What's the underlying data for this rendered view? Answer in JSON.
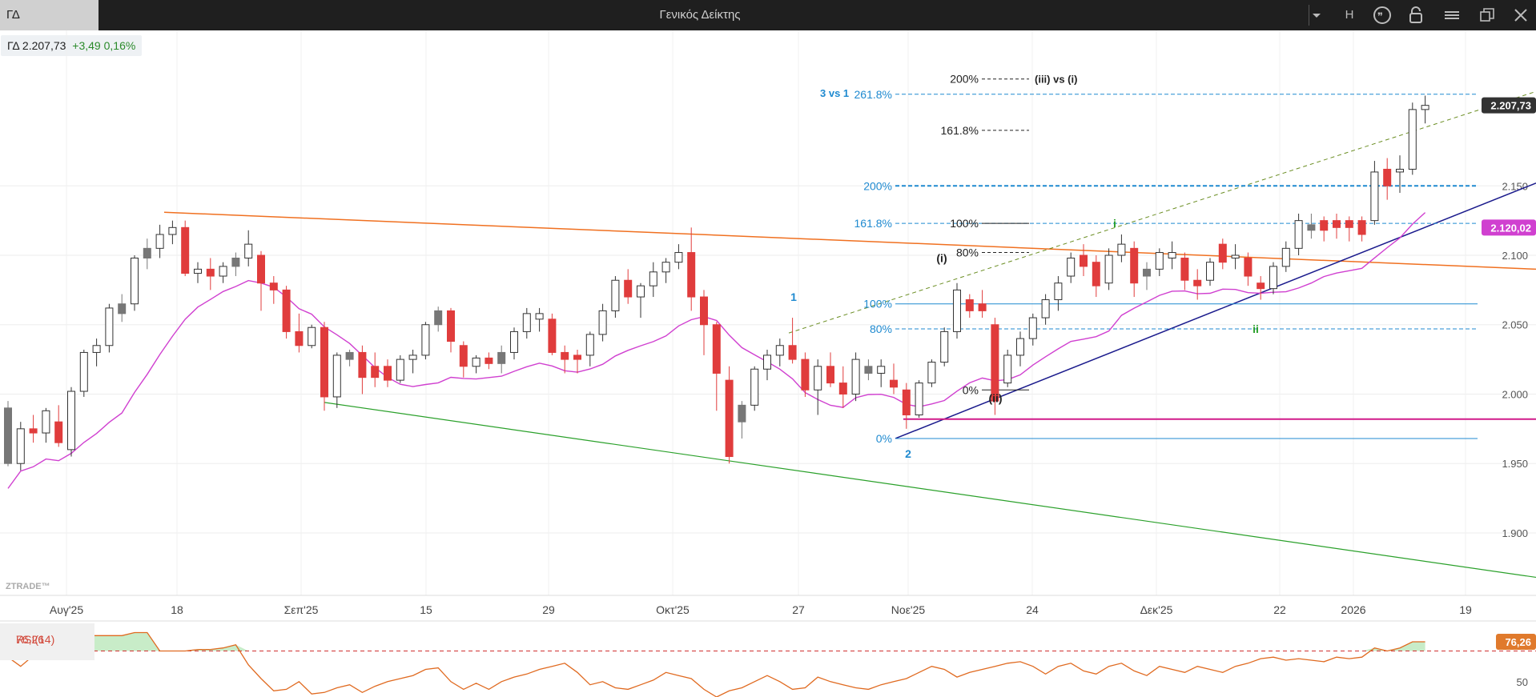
{
  "window": {
    "tab_label": "ΓΔ",
    "title": "Γενικός Δείκτης",
    "buttons": {
      "h_label": "H"
    }
  },
  "quote": {
    "symbol": "ΓΔ",
    "price": "2.207,73",
    "change": "+3,49 0,16%"
  },
  "colors": {
    "up_body": "#ffffff",
    "down_body": "#e03c3c",
    "neutral_body": "#777777",
    "ma": "#d040d0",
    "channel_top": "#f07020",
    "channel_bottom": "#2aa02a",
    "trend_navy": "#1a1a8c",
    "trend_olive": "#6b8e23",
    "support_magenta": "#d01a8a",
    "fib_blue": "#1f8ad0",
    "rsi_line": "#e06a20",
    "rsi_fill": "#c8ecc8"
  },
  "chart_data": {
    "type": "candlestick",
    "symbol": "ΓΔ",
    "watermark": "ZTRADE™",
    "ylim": [
      1855,
      2262
    ],
    "y_ticks": [
      "2.150",
      "2.100",
      "2.050",
      "2.000",
      "1.950",
      "1.900"
    ],
    "y_tick_values": [
      2150,
      2100,
      2050,
      2000,
      1950,
      1900
    ],
    "x_labels": [
      {
        "label": "Αυγ'25",
        "date": "2025-08-01"
      },
      {
        "label": "18",
        "date": "2025-08-18"
      },
      {
        "label": "Σεπ'25",
        "date": "2025-09-01"
      },
      {
        "label": "15",
        "date": "2025-09-15"
      },
      {
        "label": "29",
        "date": "2025-09-29"
      },
      {
        "label": "Οκτ'25",
        "date": "2025-10-13"
      },
      {
        "label": "27",
        "date": "2025-10-27"
      },
      {
        "label": "Νοε'25",
        "date": "2025-11-10"
      },
      {
        "label": "24",
        "date": "2025-11-24"
      },
      {
        "label": "Δεκ'25",
        "date": "2025-12-08"
      },
      {
        "label": "22",
        "date": "2025-12-22"
      },
      {
        "label": "2026",
        "date": "2026-01-05"
      },
      {
        "label": "19",
        "date": "2026-01-19"
      }
    ],
    "candles": [
      [
        1990,
        1995,
        1948,
        1950,
        "n"
      ],
      [
        1950,
        1980,
        1945,
        1975,
        "u"
      ],
      [
        1975,
        1985,
        1965,
        1972,
        "d"
      ],
      [
        1972,
        1990,
        1965,
        1988,
        "u"
      ],
      [
        1980,
        1992,
        1962,
        1965,
        "d"
      ],
      [
        1960,
        2005,
        1955,
        2002,
        "u"
      ],
      [
        2002,
        2032,
        1998,
        2030,
        "u"
      ],
      [
        2030,
        2040,
        2020,
        2035,
        "u"
      ],
      [
        2035,
        2065,
        2030,
        2062,
        "u"
      ],
      [
        2058,
        2072,
        2052,
        2065,
        "n"
      ],
      [
        2065,
        2100,
        2060,
        2098,
        "u"
      ],
      [
        2098,
        2112,
        2090,
        2105,
        "n"
      ],
      [
        2105,
        2122,
        2098,
        2115,
        "u"
      ],
      [
        2115,
        2125,
        2108,
        2120,
        "u"
      ],
      [
        2120,
        2125,
        2085,
        2087,
        "d"
      ],
      [
        2087,
        2095,
        2080,
        2090,
        "u"
      ],
      [
        2090,
        2098,
        2075,
        2085,
        "d"
      ],
      [
        2085,
        2095,
        2080,
        2092,
        "u"
      ],
      [
        2092,
        2102,
        2085,
        2098,
        "n"
      ],
      [
        2098,
        2118,
        2092,
        2108,
        "u"
      ],
      [
        2100,
        2103,
        2060,
        2080,
        "d"
      ],
      [
        2080,
        2085,
        2065,
        2075,
        "d"
      ],
      [
        2075,
        2078,
        2040,
        2045,
        "d"
      ],
      [
        2045,
        2058,
        2030,
        2035,
        "d"
      ],
      [
        2035,
        2050,
        2033,
        2048,
        "u"
      ],
      [
        2048,
        2052,
        1988,
        1998,
        "d"
      ],
      [
        1998,
        2030,
        1990,
        2028,
        "u"
      ],
      [
        2025,
        2032,
        2020,
        2030,
        "n"
      ],
      [
        2030,
        2035,
        2000,
        2012,
        "d"
      ],
      [
        2012,
        2030,
        2005,
        2020,
        "d"
      ],
      [
        2020,
        2025,
        2005,
        2010,
        "d"
      ],
      [
        2010,
        2028,
        2008,
        2025,
        "u"
      ],
      [
        2025,
        2032,
        2015,
        2028,
        "u"
      ],
      [
        2028,
        2052,
        2025,
        2050,
        "u"
      ],
      [
        2050,
        2063,
        2045,
        2060,
        "n"
      ],
      [
        2060,
        2062,
        2030,
        2038,
        "d"
      ],
      [
        2035,
        2038,
        2012,
        2020,
        "d"
      ],
      [
        2020,
        2028,
        2015,
        2026,
        "u"
      ],
      [
        2026,
        2030,
        2018,
        2022,
        "d"
      ],
      [
        2022,
        2035,
        2015,
        2030,
        "n"
      ],
      [
        2030,
        2048,
        2025,
        2045,
        "u"
      ],
      [
        2045,
        2062,
        2040,
        2058,
        "u"
      ],
      [
        2058,
        2062,
        2045,
        2054,
        "u"
      ],
      [
        2054,
        2058,
        2028,
        2030,
        "d"
      ],
      [
        2030,
        2035,
        2015,
        2025,
        "d"
      ],
      [
        2025,
        2032,
        2015,
        2028,
        "d"
      ],
      [
        2028,
        2045,
        2020,
        2043,
        "u"
      ],
      [
        2043,
        2065,
        2038,
        2060,
        "u"
      ],
      [
        2060,
        2085,
        2055,
        2082,
        "u"
      ],
      [
        2082,
        2090,
        2065,
        2070,
        "d"
      ],
      [
        2070,
        2080,
        2055,
        2078,
        "u"
      ],
      [
        2078,
        2095,
        2070,
        2088,
        "u"
      ],
      [
        2088,
        2098,
        2080,
        2095,
        "u"
      ],
      [
        2095,
        2108,
        2090,
        2102,
        "u"
      ],
      [
        2102,
        2120,
        2060,
        2070,
        "d"
      ],
      [
        2070,
        2075,
        2028,
        2050,
        "d"
      ],
      [
        2050,
        2052,
        1988,
        2015,
        "d"
      ],
      [
        2010,
        2020,
        1950,
        1955,
        "d"
      ],
      [
        1980,
        1995,
        1968,
        1992,
        "n"
      ],
      [
        1992,
        2020,
        1988,
        2018,
        "u"
      ],
      [
        2018,
        2032,
        2010,
        2028,
        "u"
      ],
      [
        2028,
        2040,
        2020,
        2035,
        "u"
      ],
      [
        2035,
        2055,
        2022,
        2025,
        "d"
      ],
      [
        2025,
        2030,
        1998,
        2003,
        "d"
      ],
      [
        2003,
        2025,
        1985,
        2020,
        "u"
      ],
      [
        2020,
        2030,
        2005,
        2008,
        "d"
      ],
      [
        2008,
        2020,
        1990,
        2000,
        "d"
      ],
      [
        2000,
        2030,
        1995,
        2025,
        "u"
      ],
      [
        2020,
        2025,
        2010,
        2015,
        "n"
      ],
      [
        2015,
        2025,
        2005,
        2020,
        "u"
      ],
      [
        2010,
        2022,
        2000,
        2005,
        "d"
      ],
      [
        2003,
        2008,
        1975,
        1985,
        "d"
      ],
      [
        1985,
        2010,
        1983,
        2008,
        "u"
      ],
      [
        2008,
        2025,
        2005,
        2023,
        "u"
      ],
      [
        2023,
        2048,
        2020,
        2045,
        "u"
      ],
      [
        2045,
        2080,
        2040,
        2075,
        "u"
      ],
      [
        2068,
        2072,
        2055,
        2060,
        "d"
      ],
      [
        2065,
        2075,
        2055,
        2060,
        "d"
      ],
      [
        2050,
        2055,
        1985,
        1995,
        "d"
      ],
      [
        2008,
        2032,
        2005,
        2028,
        "u"
      ],
      [
        2028,
        2045,
        2020,
        2040,
        "u"
      ],
      [
        2040,
        2058,
        2035,
        2055,
        "u"
      ],
      [
        2055,
        2072,
        2050,
        2068,
        "u"
      ],
      [
        2068,
        2085,
        2060,
        2080,
        "u"
      ],
      [
        2085,
        2102,
        2080,
        2098,
        "u"
      ],
      [
        2100,
        2108,
        2085,
        2092,
        "d"
      ],
      [
        2095,
        2100,
        2070,
        2078,
        "d"
      ],
      [
        2080,
        2105,
        2075,
        2100,
        "u"
      ],
      [
        2100,
        2115,
        2095,
        2108,
        "u"
      ],
      [
        2105,
        2110,
        2070,
        2080,
        "d"
      ],
      [
        2090,
        2095,
        2075,
        2085,
        "n"
      ],
      [
        2090,
        2105,
        2085,
        2102,
        "u"
      ],
      [
        2102,
        2110,
        2090,
        2098,
        "u"
      ],
      [
        2098,
        2102,
        2075,
        2082,
        "d"
      ],
      [
        2082,
        2090,
        2068,
        2078,
        "d"
      ],
      [
        2082,
        2098,
        2078,
        2095,
        "u"
      ],
      [
        2095,
        2112,
        2090,
        2108,
        "d"
      ],
      [
        2100,
        2108,
        2090,
        2098,
        "u"
      ],
      [
        2098,
        2102,
        2078,
        2085,
        "d"
      ],
      [
        2080,
        2085,
        2068,
        2076,
        "d"
      ],
      [
        2076,
        2095,
        2072,
        2092,
        "u"
      ],
      [
        2092,
        2110,
        2088,
        2105,
        "u"
      ],
      [
        2105,
        2130,
        2100,
        2125,
        "u"
      ],
      [
        2122,
        2130,
        2112,
        2118,
        "n"
      ],
      [
        2118,
        2128,
        2110,
        2125,
        "d"
      ],
      [
        2125,
        2130,
        2112,
        2120,
        "d"
      ],
      [
        2120,
        2128,
        2110,
        2125,
        "d"
      ],
      [
        2125,
        2128,
        2110,
        2115,
        "d"
      ],
      [
        2125,
        2168,
        2122,
        2160,
        "u"
      ],
      [
        2162,
        2170,
        2140,
        2150,
        "d"
      ],
      [
        2160,
        2172,
        2145,
        2162,
        "u"
      ],
      [
        2162,
        2210,
        2158,
        2205,
        "u"
      ],
      [
        2205,
        2215,
        2195,
        2208,
        "u"
      ]
    ],
    "indicators": [
      "MA (magenta)"
    ],
    "annotations": {
      "fib_left_labels": [
        "3 vs 1",
        "261.8%",
        "200%",
        "161.8%",
        "100%",
        "80%",
        "0%"
      ],
      "fib_left_values": [
        null,
        2216,
        2150,
        2123,
        2065,
        2047,
        1968
      ],
      "fib_right_labels": [
        "200%",
        "161.8%",
        "100%",
        "80%",
        "0%"
      ],
      "fib_right_suffix": "(iii) vs (i)",
      "wave_labels": [
        "1",
        "2",
        "(i)",
        "(ii)",
        "i",
        "ii"
      ],
      "price_tags": [
        "2.207,73",
        "2.120,02"
      ],
      "magenta_support_value": 1982
    },
    "rsi": {
      "label": "RSI(14)",
      "value_label": "76,26",
      "tick_label": "50",
      "ylim": [
        40,
        88
      ],
      "overbought": 70,
      "values": [
        66,
        60,
        67,
        72,
        75,
        78,
        80,
        80,
        80,
        80,
        82,
        82,
        70,
        70,
        70,
        71,
        71,
        72,
        74,
        61,
        52,
        44,
        45,
        50,
        42,
        43,
        46,
        48,
        43,
        47,
        50,
        52,
        54,
        58,
        59,
        50,
        45,
        49,
        45,
        50,
        53,
        55,
        58,
        60,
        62,
        56,
        48,
        50,
        46,
        45,
        48,
        51,
        56,
        54,
        52,
        45,
        40,
        44,
        46,
        50,
        54,
        50,
        45,
        46,
        53,
        50,
        48,
        46,
        45,
        48,
        50,
        52,
        56,
        60,
        58,
        53,
        56,
        58,
        60,
        62,
        63,
        60,
        55,
        60,
        62,
        57,
        55,
        60,
        62,
        57,
        54,
        60,
        58,
        56,
        60,
        58,
        56,
        60,
        62,
        65,
        66,
        64,
        65,
        64,
        63,
        66,
        65,
        66,
        72,
        70,
        72,
        76,
        76
      ]
    }
  }
}
